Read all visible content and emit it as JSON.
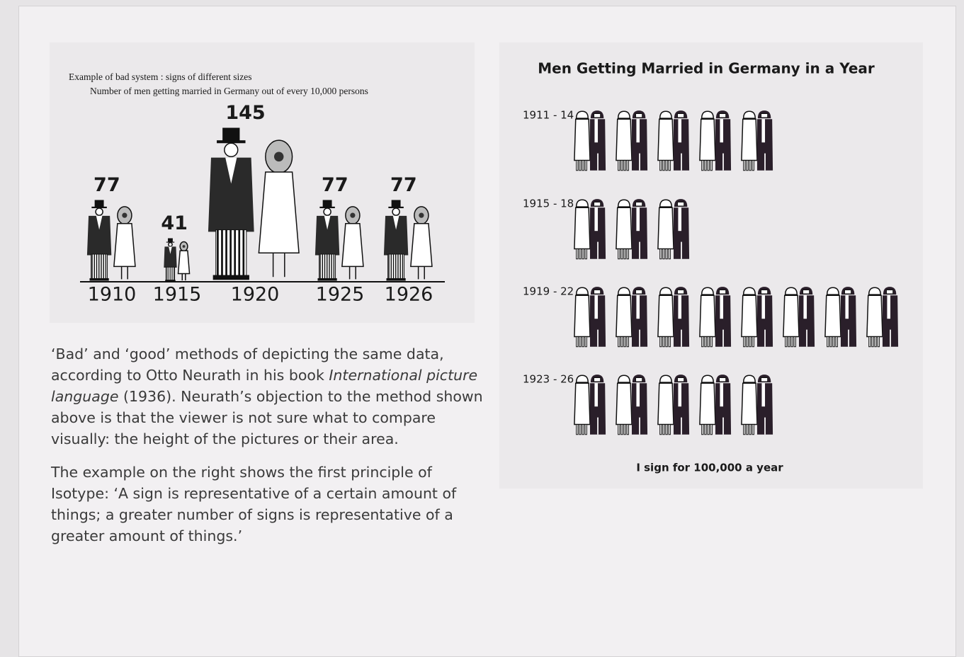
{
  "chart_data": [
    {
      "type": "pictogram-size",
      "title": "Example of bad system :  signs of different sizes",
      "subtitle": "Number of men getting married in Germany out of every 10,000 persons",
      "categories": [
        "1910",
        "1915",
        "1920",
        "1925",
        "1926"
      ],
      "values": [
        77,
        41,
        145,
        77,
        77
      ]
    },
    {
      "type": "pictogram-count",
      "title": "Men Getting Married in Germany in a Year",
      "categories": [
        "1911 - 14",
        "1915 - 18",
        "1919 - 22",
        "1923 - 26"
      ],
      "values": [
        5,
        3,
        8,
        5
      ],
      "note": "I sign for 100,000 a year"
    }
  ],
  "text": {
    "paragraphs": [
      [
        "‘Bad’ and ‘good’ methods of depicting the same data, according to Otto Neurath in his book ",
        "International picture language",
        " (1936). Neurath’s objection to the method shown above is that the viewer is not sure what to compare visually: the height of the pictures or their area."
      ],
      [
        "The example on the right shows the first principle of Isotype: ‘A sign is representative of a certain amount of things; a greater number of signs is representative of a greater amount of things.’"
      ]
    ]
  }
}
